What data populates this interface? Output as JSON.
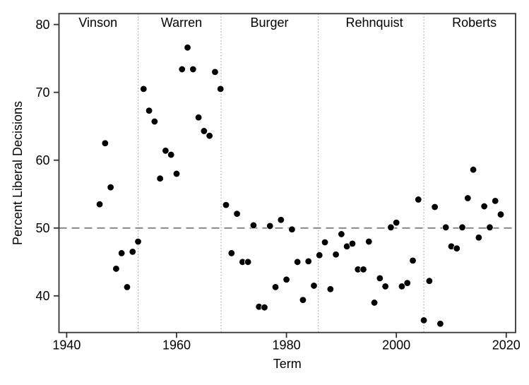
{
  "figure": {
    "background_color": "#ffffff",
    "point_color": "#000000",
    "axis_color": "#333333",
    "reference_line_color": "#808080",
    "divider_color": "#9a9a9a",
    "text_color": "#000000"
  },
  "chart_data": {
    "type": "scatter",
    "title": "",
    "xlabel": "Term",
    "ylabel": "Percent Liberal Decisions",
    "xlim": [
      1938.6,
      2021.7
    ],
    "ylim": [
      34.6,
      81.6
    ],
    "xticks": [
      1940,
      1960,
      1980,
      2000,
      2020
    ],
    "yticks": [
      40,
      50,
      60,
      70,
      80
    ],
    "grid": false,
    "legend": "none",
    "marker": {
      "shape": "circle",
      "color": "#000000"
    },
    "reference_line": {
      "y": 50,
      "style": "dashed",
      "color": "#808080"
    },
    "era_dividers": [
      1953.0,
      1968.1,
      1985.8,
      2005.0
    ],
    "eras": [
      {
        "label": "Vinson",
        "center": 1945.7
      },
      {
        "label": "Warren",
        "center": 1960.9
      },
      {
        "label": "Burger",
        "center": 1976.9
      },
      {
        "label": "Rehnquist",
        "center": 1996.0
      },
      {
        "label": "Roberts",
        "center": 2014.2
      }
    ],
    "points": [
      [
        1946,
        53.5
      ],
      [
        1947,
        62.5
      ],
      [
        1948,
        56.0
      ],
      [
        1949,
        44.0
      ],
      [
        1950,
        46.3
      ],
      [
        1951,
        41.3
      ],
      [
        1952,
        46.5
      ],
      [
        1953,
        48.0
      ],
      [
        1954,
        70.5
      ],
      [
        1955,
        67.3
      ],
      [
        1956,
        65.7
      ],
      [
        1957,
        57.3
      ],
      [
        1958,
        61.4
      ],
      [
        1959,
        60.8
      ],
      [
        1960,
        58.0
      ],
      [
        1961,
        73.4
      ],
      [
        1962,
        76.6
      ],
      [
        1963,
        73.4
      ],
      [
        1964,
        66.3
      ],
      [
        1965,
        64.3
      ],
      [
        1966,
        63.6
      ],
      [
        1967,
        73.0
      ],
      [
        1968,
        70.5
      ],
      [
        1969,
        53.4
      ],
      [
        1970,
        46.3
      ],
      [
        1971,
        52.1
      ],
      [
        1972,
        45.0
      ],
      [
        1973,
        45.0
      ],
      [
        1974,
        50.4
      ],
      [
        1975,
        38.4
      ],
      [
        1976,
        38.3
      ],
      [
        1977,
        50.3
      ],
      [
        1978,
        41.3
      ],
      [
        1979,
        51.2
      ],
      [
        1980,
        42.4
      ],
      [
        1981,
        49.8
      ],
      [
        1982,
        45.0
      ],
      [
        1983,
        39.4
      ],
      [
        1984,
        45.1
      ],
      [
        1985,
        41.5
      ],
      [
        1986,
        46.0
      ],
      [
        1987,
        47.9
      ],
      [
        1988,
        41.0
      ],
      [
        1989,
        46.1
      ],
      [
        1990,
        49.1
      ],
      [
        1991,
        47.3
      ],
      [
        1992,
        47.7
      ],
      [
        1993,
        43.9
      ],
      [
        1994,
        43.9
      ],
      [
        1995,
        48.0
      ],
      [
        1996,
        39.0
      ],
      [
        1997,
        42.6
      ],
      [
        1998,
        41.4
      ],
      [
        1999,
        50.1
      ],
      [
        2000,
        50.8
      ],
      [
        2001,
        41.4
      ],
      [
        2002,
        41.9
      ],
      [
        2003,
        45.2
      ],
      [
        2004,
        54.2
      ],
      [
        2005,
        36.4
      ],
      [
        2006,
        42.2
      ],
      [
        2007,
        53.1
      ],
      [
        2008,
        35.9
      ],
      [
        2009,
        50.1
      ],
      [
        2010,
        47.3
      ],
      [
        2011,
        47.0
      ],
      [
        2012,
        50.1
      ],
      [
        2013,
        54.4
      ],
      [
        2014,
        58.6
      ],
      [
        2015,
        48.6
      ],
      [
        2016,
        53.2
      ],
      [
        2017,
        50.1
      ],
      [
        2018,
        54.0
      ],
      [
        2019,
        52.0
      ]
    ]
  }
}
